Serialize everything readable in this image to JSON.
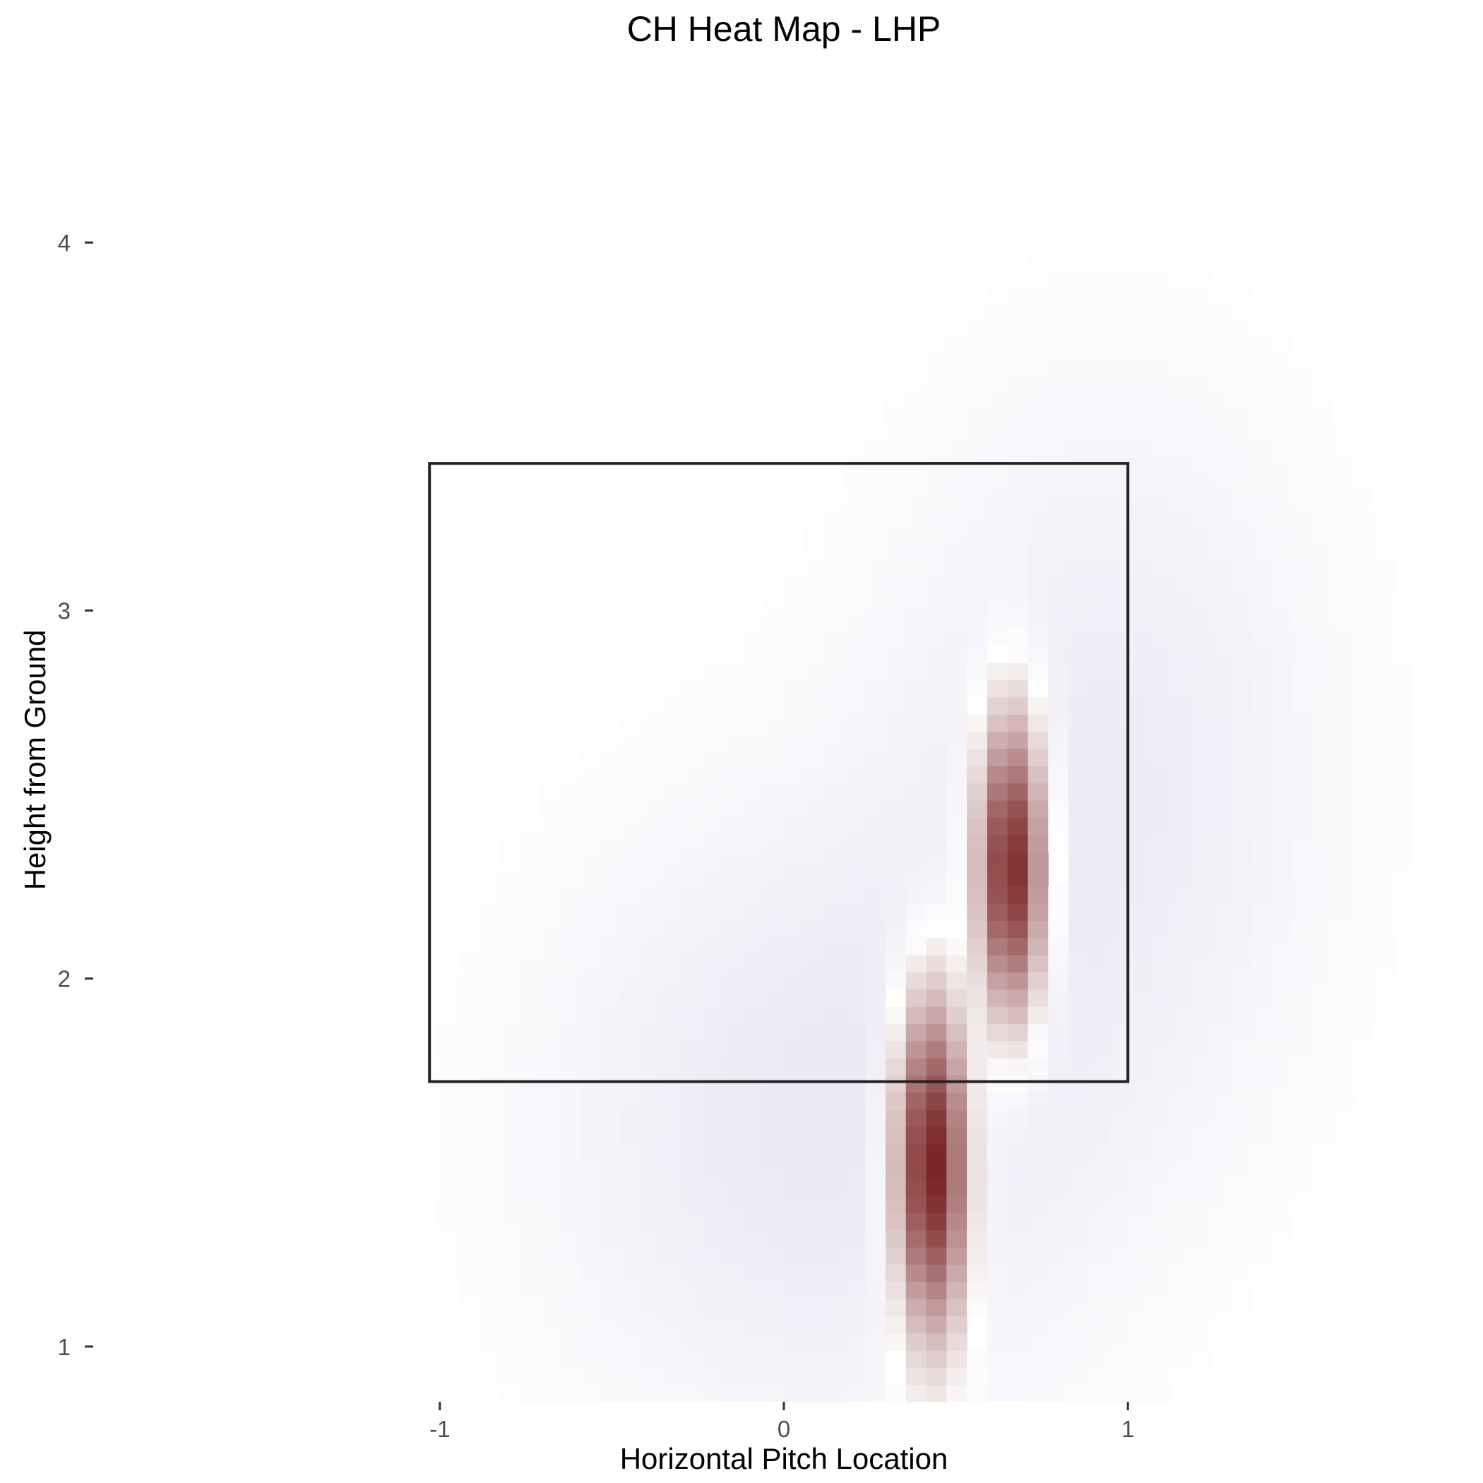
{
  "chart_data": {
    "type": "heatmap",
    "title": "CH Heat Map - LHP",
    "xlabel": "Horizontal Pitch Location",
    "ylabel": "Height from Ground",
    "xlim": [
      -1.95,
      1.95
    ],
    "ylim": [
      0.85,
      4.4
    ],
    "x_ticks": [
      {
        "value": -1,
        "label": "-1"
      },
      {
        "value": 0,
        "label": "0"
      },
      {
        "value": 1,
        "label": "1"
      }
    ],
    "y_ticks": [
      {
        "value": 1,
        "label": "1"
      },
      {
        "value": 2,
        "label": "2"
      },
      {
        "value": 3,
        "label": "3"
      },
      {
        "value": 4,
        "label": "4"
      }
    ],
    "grid": false,
    "legend": "none",
    "strike_zone": {
      "x_min": -1.03,
      "x_max": 1.0,
      "y_min": 1.72,
      "y_max": 3.4
    },
    "colors": {
      "low": "#ece9f4",
      "mid": "#ffffff",
      "high": "#6b0d0d"
    },
    "density_peaks": [
      {
        "x": 0.43,
        "y": 1.5,
        "sx": 0.07,
        "sy": 0.3,
        "weight": 1.0
      },
      {
        "x": 0.66,
        "y": 2.3,
        "sx": 0.065,
        "sy": 0.27,
        "weight": 0.95
      },
      {
        "x": 0.1,
        "y": 1.6,
        "sx": 0.55,
        "sy": 0.6,
        "weight": -0.12
      },
      {
        "x": 0.95,
        "y": 2.6,
        "sx": 0.45,
        "sy": 0.7,
        "weight": -0.1
      }
    ],
    "grid_size": {
      "nx": 66,
      "ny": 76
    }
  }
}
